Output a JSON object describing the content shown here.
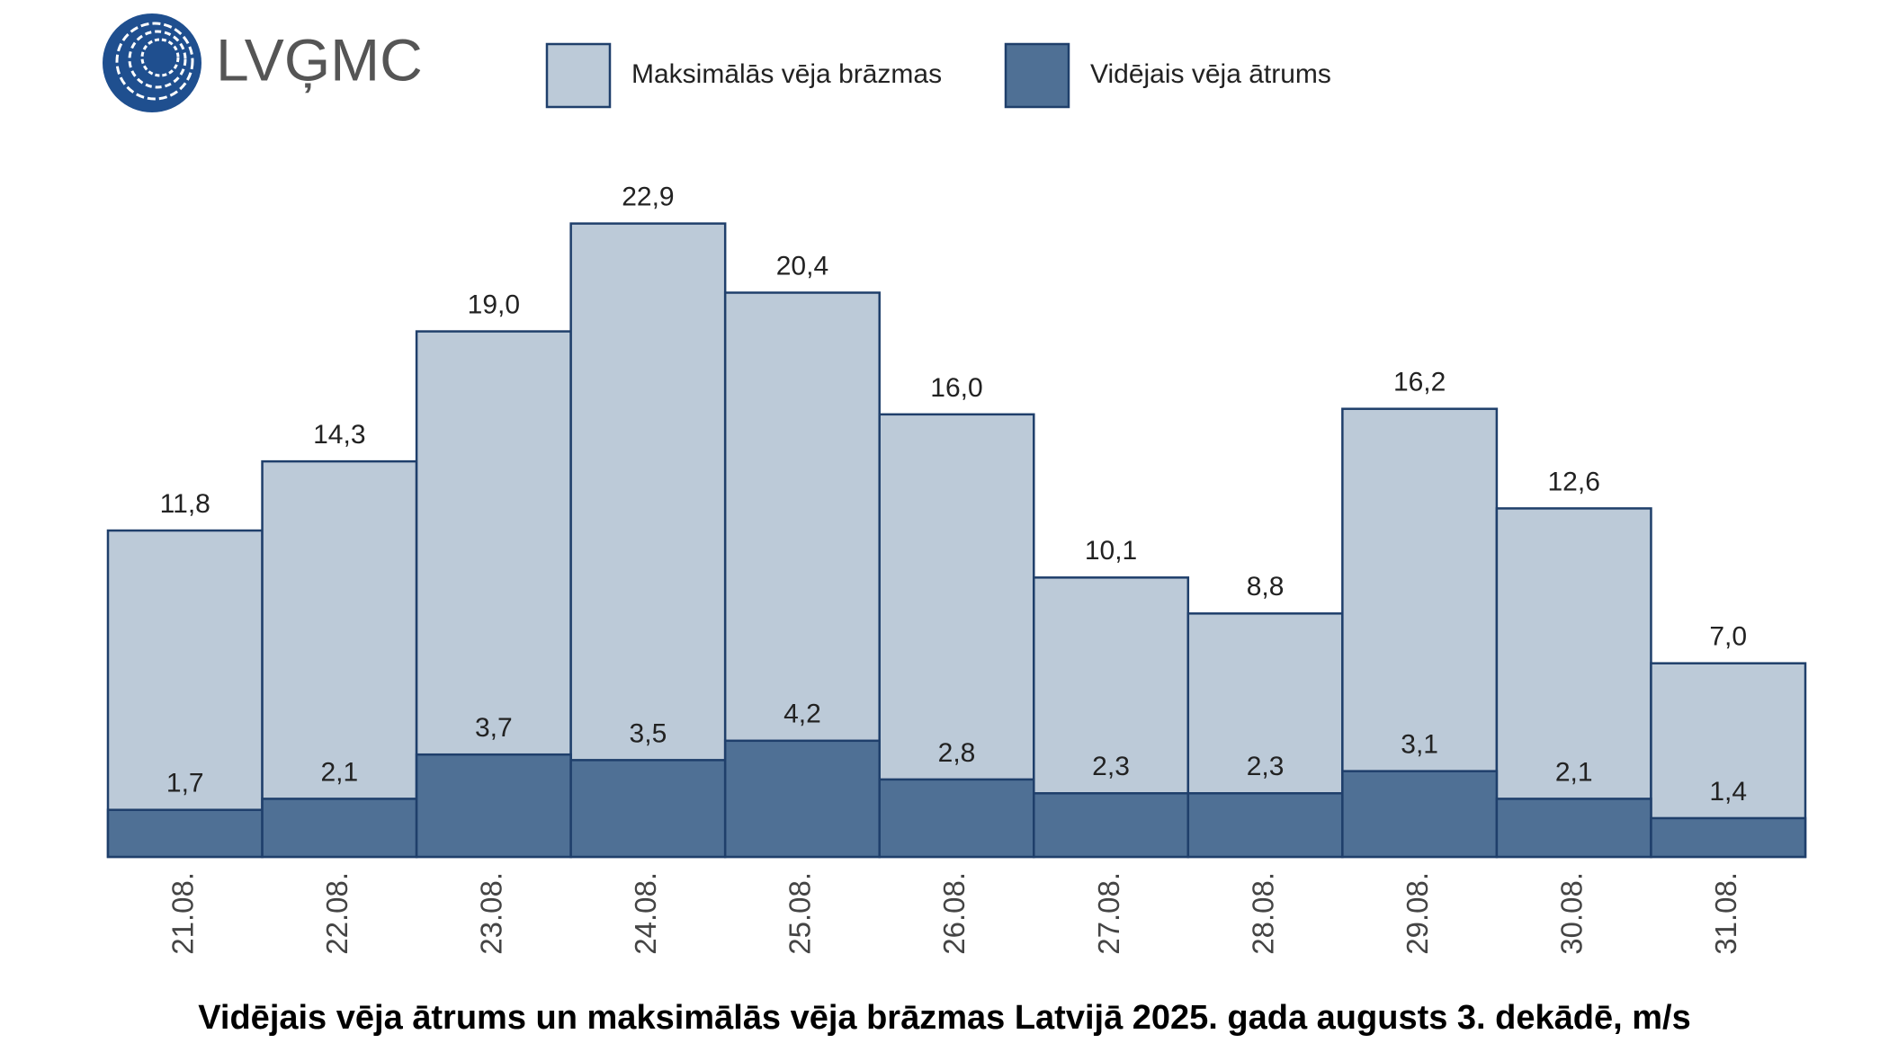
{
  "logo": "LVĢMC",
  "chart_data": {
    "type": "bar",
    "title": "Vidējais vēja ātrums un maksimālās vēja brāzmas Latvijā 2025. gada augusts 3. dekādē, m/s",
    "categories": [
      "21.08.",
      "22.08.",
      "23.08.",
      "24.08.",
      "25.08.",
      "26.08.",
      "27.08.",
      "28.08.",
      "29.08.",
      "30.08.",
      "31.08."
    ],
    "series": [
      {
        "name": "Maksimālās vēja brāzmas",
        "color": "#bccad8",
        "values": [
          11.8,
          14.3,
          19.0,
          22.9,
          20.4,
          16.0,
          10.1,
          8.8,
          16.2,
          12.6,
          7.0
        ],
        "value_labels": [
          "11,8",
          "14,3",
          "19,0",
          "22,9",
          "20,4",
          "16,0",
          "10,1",
          "8,8",
          "16,2",
          "12,6",
          "7,0"
        ]
      },
      {
        "name": "Vidējais vēja ātrums",
        "color": "#4f7095",
        "values": [
          1.7,
          2.1,
          3.7,
          3.5,
          4.2,
          2.8,
          2.3,
          2.3,
          3.1,
          2.1,
          1.4
        ],
        "value_labels": [
          "1,7",
          "2,1",
          "3,7",
          "3,5",
          "4,2",
          "2,8",
          "2,3",
          "2,3",
          "3,1",
          "2,1",
          "1,4"
        ]
      }
    ],
    "ylim": [
      0,
      25
    ]
  }
}
